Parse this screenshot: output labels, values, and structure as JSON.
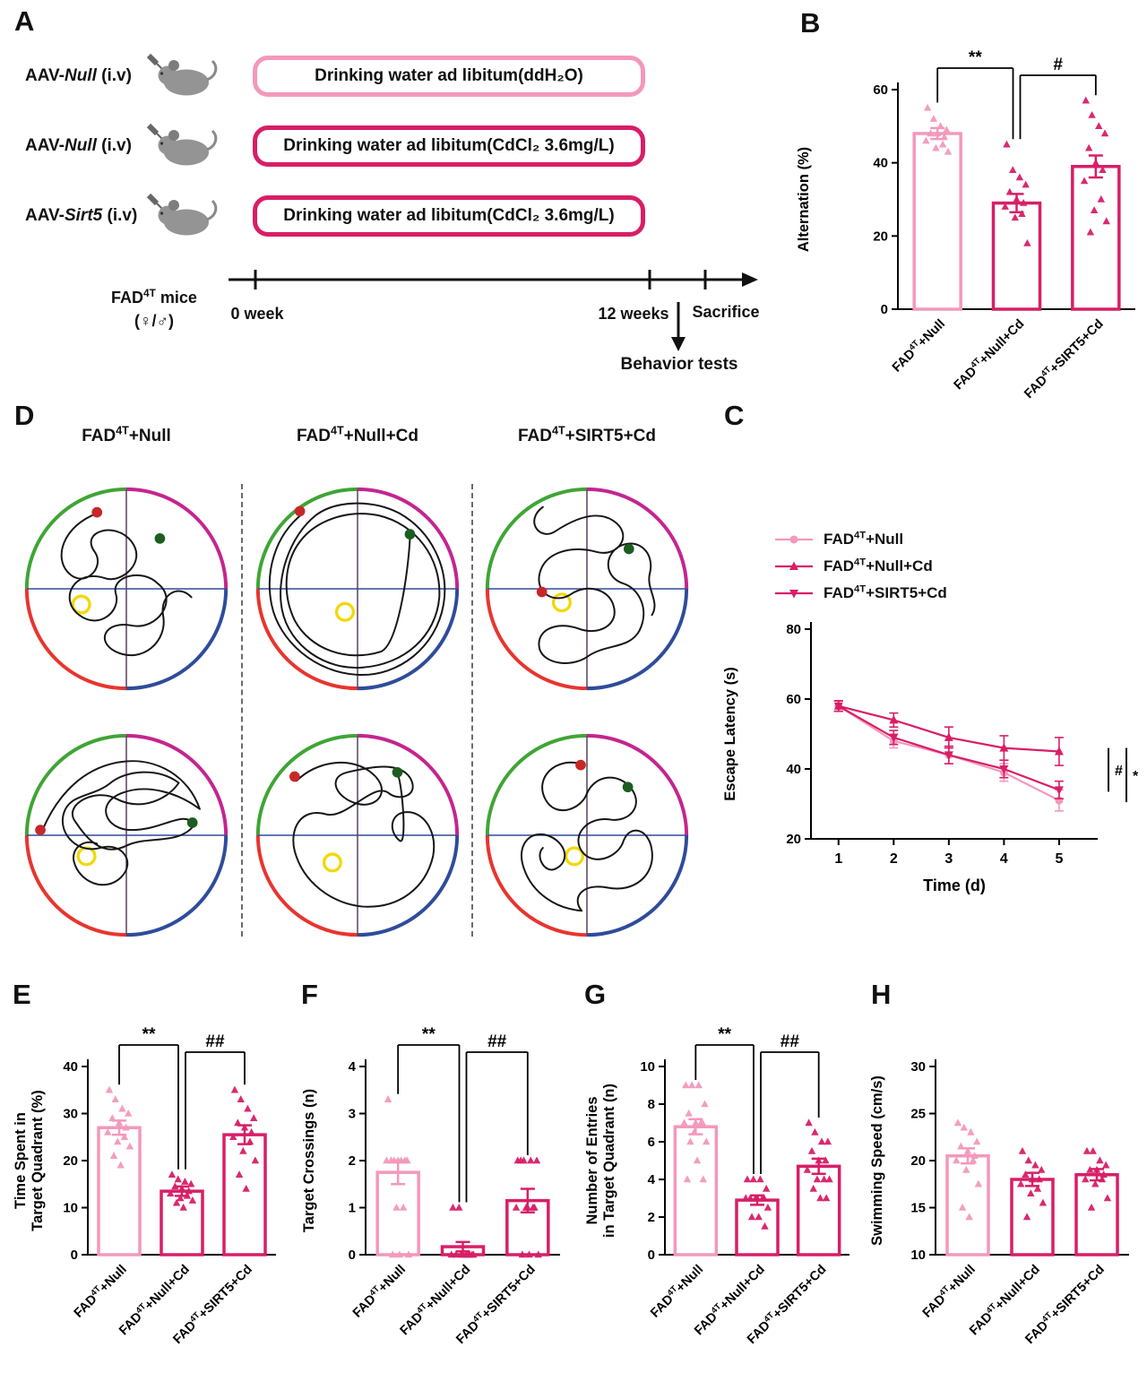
{
  "colors": {
    "light_pink": "#F398BC",
    "dark_pink": "#D81E67",
    "quad_tl": "#3FA535",
    "quad_tr": "#C4258F",
    "quad_bl": "#E8352E",
    "quad_br": "#2F4C9B",
    "platform": "#F2D800",
    "start_dot": "#C62828",
    "end_dot": "#1B5E20"
  },
  "panel_labels": {
    "a": "A",
    "b": "B",
    "c": "C",
    "d": "D",
    "e": "E",
    "f": "F",
    "g": "G",
    "h": "H"
  },
  "panel_a": {
    "rows": [
      {
        "prefix": "AAV-",
        "gene": "Null",
        "suffix": " (i.v)",
        "box_text": "Drinking water ad libitum(ddH₂O)"
      },
      {
        "prefix": "AAV-",
        "gene": "Null",
        "suffix": " (i.v)",
        "box_text": "Drinking water ad libitum(CdCl₂ 3.6mg/L)"
      },
      {
        "prefix": "AAV-",
        "gene": "Sirt5",
        "suffix": " (i.v)",
        "box_text": "Drinking water ad libitum(CdCl₂ 3.6mg/L)"
      }
    ],
    "timeline": {
      "mice_base": "FAD",
      "mice_sup": "4T",
      "mice_rest": " mice",
      "sex": "(♀/♂)",
      "start_label": "0 week",
      "week12_label": "12 weeks",
      "sacrifice_label": "Sacrifice",
      "behavior_label": "Behavior tests"
    }
  },
  "panel_d": {
    "headers": [
      "FAD^{4T}+Null",
      "FAD^{4T}+Null+Cd",
      "FAD^{4T}+SIRT5+Cd"
    ]
  },
  "chart_data": [
    {
      "id": "B",
      "type": "bar",
      "ylabel": "Alternation (%)",
      "ylim": [
        0,
        60
      ],
      "yticks": [
        0,
        20,
        40,
        60
      ],
      "categories": [
        "FAD^{4T}+Null",
        "FAD^{4T}+Null+Cd",
        "FAD^{4T}+SIRT5+Cd"
      ],
      "bar_colors": [
        "light",
        "dark",
        "dark"
      ],
      "values": [
        48,
        29,
        39
      ],
      "errors": [
        1.5,
        2.5,
        3
      ],
      "scatter": [
        [
          55,
          52,
          50,
          49,
          48,
          48,
          47,
          46,
          45,
          44,
          43
        ],
        [
          45,
          38,
          36,
          34,
          32,
          30,
          29,
          28,
          26,
          25,
          18
        ],
        [
          57,
          53,
          50,
          48,
          44,
          40,
          38,
          35,
          30,
          27,
          24,
          21
        ]
      ],
      "sig": [
        {
          "a": 0,
          "b": 1,
          "label": "**"
        },
        {
          "a": 1,
          "b": 2,
          "label": "#"
        }
      ]
    },
    {
      "id": "C",
      "type": "line",
      "ylabel": "Escape Latency (s)",
      "xlabel": "Time (d)",
      "ylim": [
        20,
        80
      ],
      "yticks": [
        20,
        40,
        60,
        80
      ],
      "x": [
        1,
        2,
        3,
        4,
        5
      ],
      "xlim": [
        0.5,
        5.7
      ],
      "series": [
        {
          "name": "FAD^{4T}+Null",
          "marker": "circle",
          "color": "light",
          "values": [
            58,
            48,
            44,
            39,
            31
          ],
          "errors": [
            1.5,
            2,
            2.5,
            2.5,
            3
          ]
        },
        {
          "name": "FAD^{4T}+Null+Cd",
          "marker": "triangle",
          "color": "dark",
          "values": [
            58,
            54,
            49,
            46,
            45
          ],
          "errors": [
            1.5,
            2,
            3,
            3.5,
            4
          ]
        },
        {
          "name": "FAD^{4T}+SIRT5+Cd",
          "marker": "triangle-down",
          "color": "dark",
          "values": [
            58,
            49,
            44,
            40,
            34
          ],
          "errors": [
            1.5,
            2,
            2.5,
            2.5,
            2.5
          ]
        }
      ],
      "sig_right": [
        {
          "label": "#",
          "from": 33.5,
          "to": 46
        },
        {
          "label": "*",
          "from": 30.5,
          "to": 46
        }
      ]
    },
    {
      "id": "E",
      "type": "bar",
      "ylabel": [
        "Time Spent in",
        "Target Quadrant (%)"
      ],
      "ylim": [
        0,
        40
      ],
      "yticks": [
        0,
        10,
        20,
        30,
        40
      ],
      "categories": [
        "FAD^{4T}+Null",
        "FAD^{4T}+Null+Cd",
        "FAD^{4T}+SIRT5+Cd"
      ],
      "bar_colors": [
        "light",
        "dark",
        "dark"
      ],
      "values": [
        27,
        13.5,
        25.5
      ],
      "errors": [
        1.5,
        1,
        2
      ],
      "scatter": [
        [
          35,
          33,
          31,
          30,
          29,
          28,
          27,
          26,
          25,
          24,
          23,
          21,
          19
        ],
        [
          17,
          16,
          15.5,
          15,
          14.5,
          14,
          13.5,
          13,
          12.5,
          12,
          11.5,
          11,
          10
        ],
        [
          35,
          33,
          31,
          29,
          28,
          27,
          26,
          25,
          24,
          22,
          20,
          17,
          14
        ]
      ],
      "sig": [
        {
          "a": 0,
          "b": 1,
          "label": "**"
        },
        {
          "a": 1,
          "b": 2,
          "label": "##"
        }
      ]
    },
    {
      "id": "F",
      "type": "bar",
      "ylabel": "Target Crossings (n)",
      "ylim": [
        0,
        4
      ],
      "yticks": [
        0,
        1,
        2,
        3,
        4
      ],
      "categories": [
        "FAD^{4T}+Null",
        "FAD^{4T}+Null+Cd",
        "FAD^{4T}+SIRT5+Cd"
      ],
      "bar_colors": [
        "light",
        "dark",
        "dark"
      ],
      "values": [
        1.75,
        0.17,
        1.15
      ],
      "errors": [
        0.25,
        0.1,
        0.25
      ],
      "scatter": [
        [
          3.3,
          2,
          2,
          2,
          2,
          2,
          2,
          2,
          1,
          1,
          0,
          0,
          0
        ],
        [
          1,
          1,
          0,
          0,
          0,
          0,
          0,
          0,
          0,
          0,
          0
        ],
        [
          2,
          2,
          2,
          2,
          2,
          1,
          1,
          1,
          1,
          1,
          0,
          0,
          0
        ]
      ],
      "sig": [
        {
          "a": 0,
          "b": 1,
          "label": "**"
        },
        {
          "a": 1,
          "b": 2,
          "label": "##"
        }
      ]
    },
    {
      "id": "G",
      "type": "bar",
      "ylabel": [
        "Number of Entries",
        "in Target Quadrant (n)"
      ],
      "ylim": [
        0,
        10
      ],
      "yticks": [
        0,
        2,
        4,
        6,
        8,
        10
      ],
      "categories": [
        "FAD^{4T}+Null",
        "FAD^{4T}+Null+Cd",
        "FAD^{4T}+SIRT5+Cd"
      ],
      "bar_colors": [
        "light",
        "dark",
        "dark"
      ],
      "values": [
        6.8,
        2.9,
        4.7
      ],
      "errors": [
        0.4,
        0.25,
        0.4
      ],
      "scatter": [
        [
          9,
          9,
          9,
          8,
          7.5,
          7,
          7,
          7,
          7,
          6.5,
          6,
          6,
          5,
          4,
          4
        ],
        [
          4,
          4,
          4,
          3.5,
          3,
          3,
          3,
          3,
          3,
          3,
          2.5,
          2,
          2,
          1.5
        ],
        [
          7,
          6.5,
          6,
          6,
          5.5,
          5,
          5,
          4.5,
          4,
          4,
          4,
          3.5,
          3,
          3
        ]
      ],
      "sig": [
        {
          "a": 0,
          "b": 1,
          "label": "**"
        },
        {
          "a": 1,
          "b": 2,
          "label": "##"
        }
      ]
    },
    {
      "id": "H",
      "type": "bar",
      "ylabel": "Swimming Speed (cm/s)",
      "ylim": [
        10,
        30
      ],
      "yticks": [
        10,
        15,
        20,
        25,
        30
      ],
      "categories": [
        "FAD^{4T}+Null",
        "FAD^{4T}+Null+Cd",
        "FAD^{4T}+SIRT5+Cd"
      ],
      "bar_colors": [
        "light",
        "dark",
        "dark"
      ],
      "values": [
        20.5,
        18,
        18.5
      ],
      "errors": [
        0.8,
        0.7,
        0.6
      ],
      "scatter": [
        [
          24,
          23.5,
          23,
          22,
          21.5,
          21,
          20.5,
          20,
          20,
          19,
          17.5,
          15,
          14
        ],
        [
          21,
          20,
          19.5,
          19,
          18.5,
          18,
          18,
          17.5,
          17,
          16.5,
          15.5,
          14
        ],
        [
          21,
          21,
          20,
          19.5,
          19,
          19,
          18.5,
          18,
          18,
          17.5,
          16,
          15
        ]
      ],
      "sig": []
    }
  ]
}
